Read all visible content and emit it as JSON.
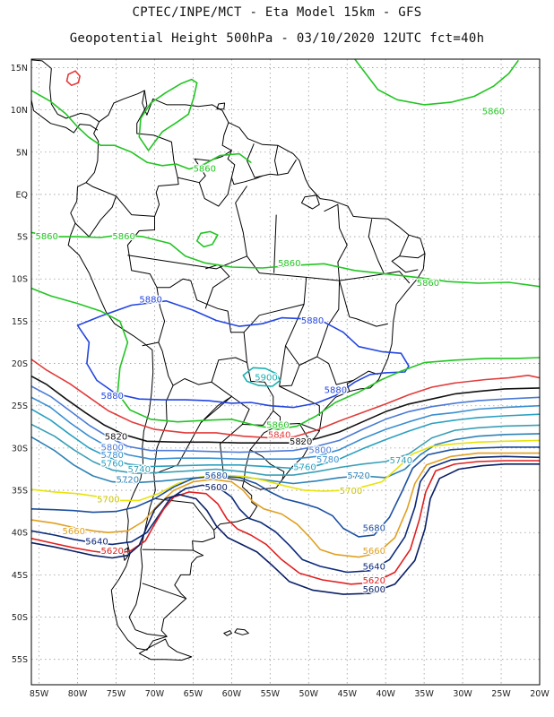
{
  "header": {
    "line1": "CPTEC/INPE/MCT -  Eta Model 15km - GFS",
    "line2": "Geopotential Height 500hPa - 03/10/2020 12UTC fct=40h"
  },
  "axes": {
    "lat_labels": [
      "15N",
      "10N",
      "5N",
      "EQ",
      "5S",
      "10S",
      "15S",
      "20S",
      "25S",
      "30S",
      "35S",
      "40S",
      "45S",
      "50S",
      "55S"
    ],
    "lat_values": [
      15,
      10,
      5,
      0,
      -5,
      -10,
      -15,
      -20,
      -25,
      -30,
      -35,
      -40,
      -45,
      -50,
      -55
    ],
    "lon_labels": [
      "85W",
      "80W",
      "75W",
      "70W",
      "65W",
      "60W",
      "55W",
      "50W",
      "45W",
      "40W",
      "35W",
      "30W",
      "25W",
      "20W"
    ],
    "lon_values": [
      -85,
      -80,
      -75,
      -70,
      -65,
      -60,
      -55,
      -50,
      -45,
      -40,
      -35,
      -30,
      -25,
      -20
    ],
    "lon_range": [
      -86,
      -20
    ],
    "lat_range": [
      -58,
      16
    ],
    "grid": true,
    "grid_style": "dotted"
  },
  "contours": [
    {
      "value": 5900,
      "color": "#1bb0b0"
    },
    {
      "value": 5880,
      "color": "#2346e0"
    },
    {
      "value": 5860,
      "color": "#22c522"
    },
    {
      "value": 5840,
      "color": "#e23b3b"
    },
    {
      "value": 5820,
      "color": "#111111"
    },
    {
      "value": 5800,
      "color": "#4b7ad6"
    },
    {
      "value": 5780,
      "color": "#3a8fd0"
    },
    {
      "value": 5760,
      "color": "#2aa0c0"
    },
    {
      "value": 5740,
      "color": "#3b9fb6"
    },
    {
      "value": 5720,
      "color": "#2f83b5"
    },
    {
      "value": 5700,
      "color": "#e8e30a"
    },
    {
      "value": 5680,
      "color": "#1b4fa0"
    },
    {
      "value": 5660,
      "color": "#e0a020"
    },
    {
      "value": 5640,
      "color": "#0b2a7a"
    },
    {
      "value": 5620,
      "color": "#e02020"
    },
    {
      "value": 5600,
      "color": "#0a1f66"
    }
  ],
  "contour_labels": [
    {
      "text": "5860",
      "color": "#22c522",
      "lon": -26,
      "lat": 9.5
    },
    {
      "text": "5860",
      "color": "#22c522",
      "lon": -63.5,
      "lat": 2.7
    },
    {
      "text": "5860",
      "color": "#22c522",
      "lon": -84,
      "lat": -5.3
    },
    {
      "text": "5860",
      "color": "#22c522",
      "lon": -74,
      "lat": -5.3
    },
    {
      "text": "5860",
      "color": "#22c522",
      "lon": -52.5,
      "lat": -8.5
    },
    {
      "text": "5860",
      "color": "#22c522",
      "lon": -34.5,
      "lat": -10.8
    },
    {
      "text": "5880",
      "color": "#2346e0",
      "lon": -70.5,
      "lat": -12.8
    },
    {
      "text": "5880",
      "color": "#2346e0",
      "lon": -49.5,
      "lat": -15.3
    },
    {
      "text": "5880",
      "color": "#2346e0",
      "lon": -75.5,
      "lat": -24.2
    },
    {
      "text": "5880",
      "color": "#2346e0",
      "lon": -46.5,
      "lat": -23.5
    },
    {
      "text": "5900",
      "color": "#1bb0b0",
      "lon": -55.5,
      "lat": -22.0
    },
    {
      "text": "5860",
      "color": "#22c522",
      "lon": -54,
      "lat": -27.6
    },
    {
      "text": "5840",
      "color": "#e23b3b",
      "lon": -53.8,
      "lat": -28.8
    },
    {
      "text": "5820",
      "color": "#111111",
      "lon": -75,
      "lat": -29.0
    },
    {
      "text": "5820",
      "color": "#111111",
      "lon": -51,
      "lat": -29.6
    },
    {
      "text": "5800",
      "color": "#4b7ad6",
      "lon": -75.5,
      "lat": -30.3
    },
    {
      "text": "5800",
      "color": "#4b7ad6",
      "lon": -48.5,
      "lat": -30.6
    },
    {
      "text": "5780",
      "color": "#3a8fd0",
      "lon": -75.5,
      "lat": -31.2
    },
    {
      "text": "5780",
      "color": "#3a8fd0",
      "lon": -47.5,
      "lat": -31.7
    },
    {
      "text": "5760",
      "color": "#2aa0c0",
      "lon": -75.5,
      "lat": -32.2
    },
    {
      "text": "5760",
      "color": "#2aa0c0",
      "lon": -50.5,
      "lat": -32.6
    },
    {
      "text": "5740",
      "color": "#3b9fb6",
      "lon": -72,
      "lat": -32.9
    },
    {
      "text": "5740",
      "color": "#3b9fb6",
      "lon": -38,
      "lat": -31.8
    },
    {
      "text": "5720",
      "color": "#2f83b5",
      "lon": -73.5,
      "lat": -34.1
    },
    {
      "text": "5720",
      "color": "#2f83b5",
      "lon": -43.5,
      "lat": -33.6
    },
    {
      "text": "5700",
      "color": "#c9c400",
      "lon": -76,
      "lat": -36.4
    },
    {
      "text": "5700",
      "color": "#c9c400",
      "lon": -44.5,
      "lat": -35.4
    },
    {
      "text": "5680",
      "color": "#1b4fa0",
      "lon": -62,
      "lat": -33.6
    },
    {
      "text": "5680",
      "color": "#1b4fa0",
      "lon": -41.5,
      "lat": -39.8
    },
    {
      "text": "5660",
      "color": "#e0a020",
      "lon": -80.5,
      "lat": -40.2
    },
    {
      "text": "5660",
      "color": "#e0a020",
      "lon": -41.5,
      "lat": -42.5
    },
    {
      "text": "5640",
      "color": "#0b2a7a",
      "lon": -77.5,
      "lat": -41.4
    },
    {
      "text": "5640",
      "color": "#0b2a7a",
      "lon": -41.5,
      "lat": -44.4
    },
    {
      "text": "5620",
      "color": "#e02020",
      "lon": -75.5,
      "lat": -42.5
    },
    {
      "text": "5620",
      "color": "#e02020",
      "lon": -41.5,
      "lat": -46.0
    },
    {
      "text": "5600",
      "color": "#0a1f66",
      "lon": -62,
      "lat": -35.0
    },
    {
      "text": "5600",
      "color": "#0a1f66",
      "lon": -41.5,
      "lat": -47.1
    }
  ],
  "colors": {
    "frame": "#000000",
    "coast": "#000000",
    "grid": "#9a9a9a",
    "background": "#ffffff"
  }
}
